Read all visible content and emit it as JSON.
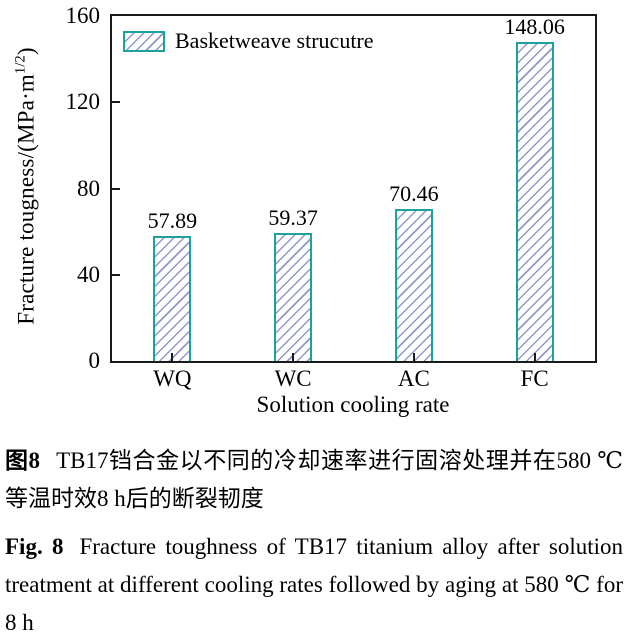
{
  "chart_data": {
    "type": "bar",
    "title": "",
    "categories": [
      "WQ",
      "WC",
      "AC",
      "FC"
    ],
    "values": [
      57.89,
      59.37,
      70.46,
      148.06
    ],
    "xlabel": "Solution cooling rate",
    "ylabel": "Fracture tougness/(MPa·m1/2)",
    "ylabel_parts": {
      "prefix": "Fracture tougness/(MPa·m",
      "superscript": "1/2",
      "suffix": ")"
    },
    "ylim": [
      0,
      160
    ],
    "yticks": [
      0,
      40,
      80,
      120,
      160
    ],
    "grid": false,
    "legend": [
      {
        "label": "Basketweave strucutre",
        "swatch": "hatched-bar-sample"
      }
    ],
    "legend_position": "top-left-inside",
    "colors": {
      "bar_border": "#1ca1a1",
      "bar_hatch": "#9297c9",
      "axis": "#1a1a1a",
      "text": "#000000",
      "background": "#ffffff"
    }
  },
  "captions": {
    "zh": {
      "label": "图8",
      "text": "TB17铛合金以不同的冷却速率进行固溶处理并在580 ℃等温时效8 h后的断裂韧度"
    },
    "en": {
      "label": "Fig. 8",
      "text": "Fracture toughness of TB17 titanium alloy after solution treatment at different cooling rates followed by aging at 580 ℃ for 8 h"
    }
  }
}
